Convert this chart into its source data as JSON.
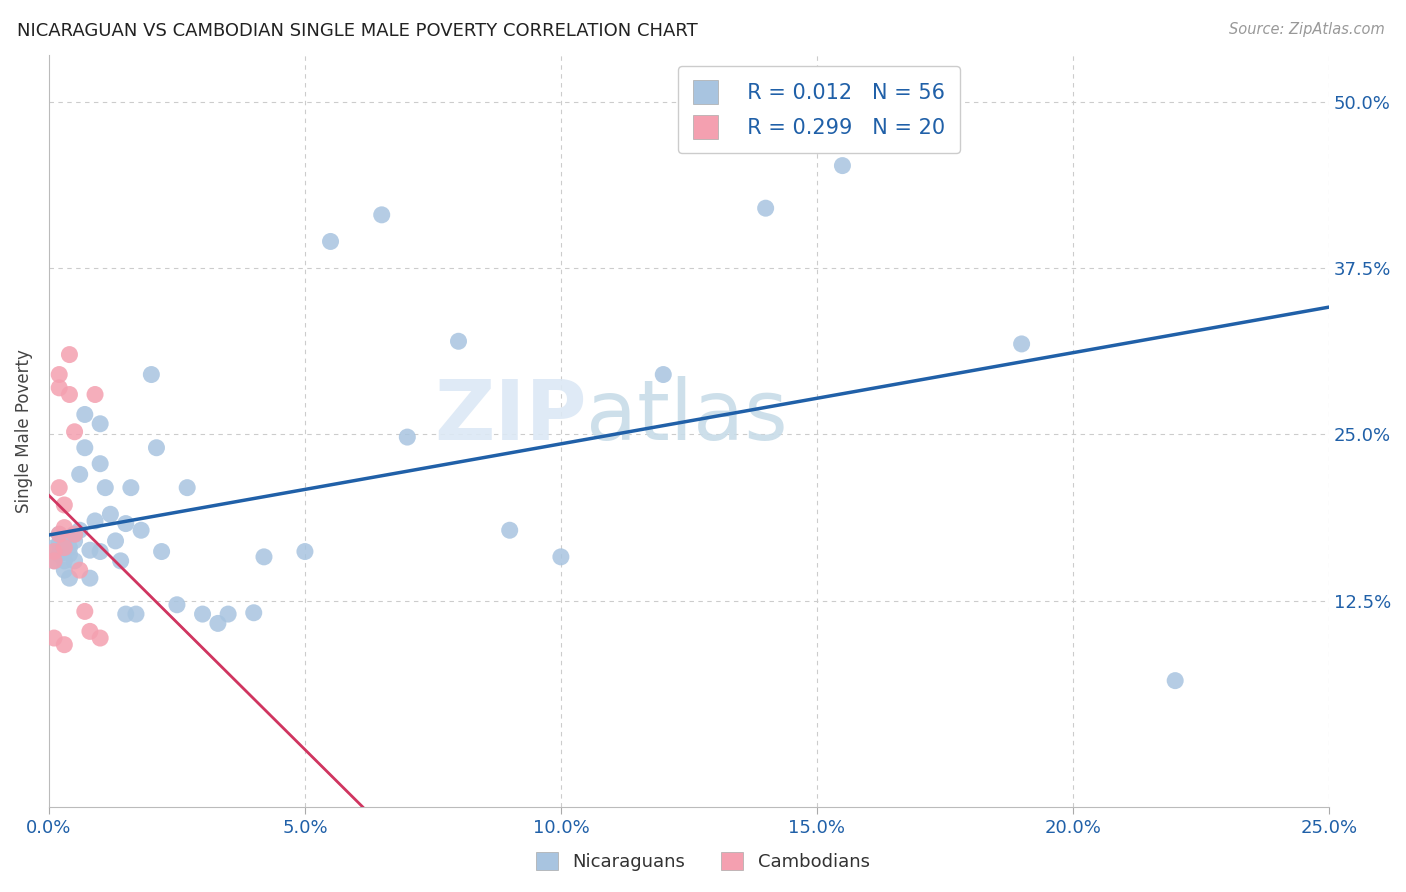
{
  "title": "NICARAGUAN VS CAMBODIAN SINGLE MALE POVERTY CORRELATION CHART",
  "source": "Source: ZipAtlas.com",
  "ylabel_label": "Single Male Poverty",
  "xlim": [
    0.0,
    0.25
  ],
  "ylim": [
    -0.03,
    0.535
  ],
  "watermark_part1": "ZIP",
  "watermark_part2": "atlas",
  "legend_line1_r": "0.012",
  "legend_line1_n": "56",
  "legend_line2_r": "0.299",
  "legend_line2_n": "20",
  "nic_color": "#a8c4e0",
  "cam_color": "#f4a0b0",
  "nic_line_color": "#2060a8",
  "cam_line_color": "#d03560",
  "nic_dash_color": "#c8d8ec",
  "background_color": "#ffffff",
  "grid_color": "#cccccc",
  "nic_x": [
    0.001,
    0.001,
    0.002,
    0.002,
    0.002,
    0.003,
    0.003,
    0.003,
    0.003,
    0.004,
    0.004,
    0.004,
    0.005,
    0.005,
    0.005,
    0.006,
    0.006,
    0.007,
    0.007,
    0.008,
    0.008,
    0.009,
    0.01,
    0.01,
    0.01,
    0.011,
    0.012,
    0.013,
    0.014,
    0.015,
    0.015,
    0.016,
    0.017,
    0.018,
    0.02,
    0.021,
    0.022,
    0.025,
    0.027,
    0.03,
    0.033,
    0.035,
    0.04,
    0.042,
    0.05,
    0.055,
    0.065,
    0.07,
    0.08,
    0.12,
    0.14,
    0.155,
    0.19,
    0.22,
    0.1,
    0.09
  ],
  "nic_y": [
    0.165,
    0.155,
    0.175,
    0.168,
    0.16,
    0.17,
    0.165,
    0.155,
    0.148,
    0.165,
    0.16,
    0.142,
    0.175,
    0.17,
    0.155,
    0.22,
    0.178,
    0.265,
    0.24,
    0.163,
    0.142,
    0.185,
    0.258,
    0.228,
    0.162,
    0.21,
    0.19,
    0.17,
    0.155,
    0.183,
    0.115,
    0.21,
    0.115,
    0.178,
    0.295,
    0.24,
    0.162,
    0.122,
    0.21,
    0.115,
    0.108,
    0.115,
    0.116,
    0.158,
    0.162,
    0.395,
    0.415,
    0.248,
    0.32,
    0.295,
    0.42,
    0.452,
    0.318,
    0.065,
    0.158,
    0.178
  ],
  "cam_x": [
    0.001,
    0.001,
    0.001,
    0.002,
    0.002,
    0.002,
    0.002,
    0.003,
    0.003,
    0.003,
    0.003,
    0.004,
    0.004,
    0.005,
    0.005,
    0.006,
    0.007,
    0.008,
    0.009,
    0.01
  ],
  "cam_y": [
    0.162,
    0.155,
    0.097,
    0.295,
    0.285,
    0.21,
    0.175,
    0.197,
    0.18,
    0.165,
    0.092,
    0.31,
    0.28,
    0.252,
    0.175,
    0.148,
    0.117,
    0.102,
    0.28,
    0.097
  ]
}
